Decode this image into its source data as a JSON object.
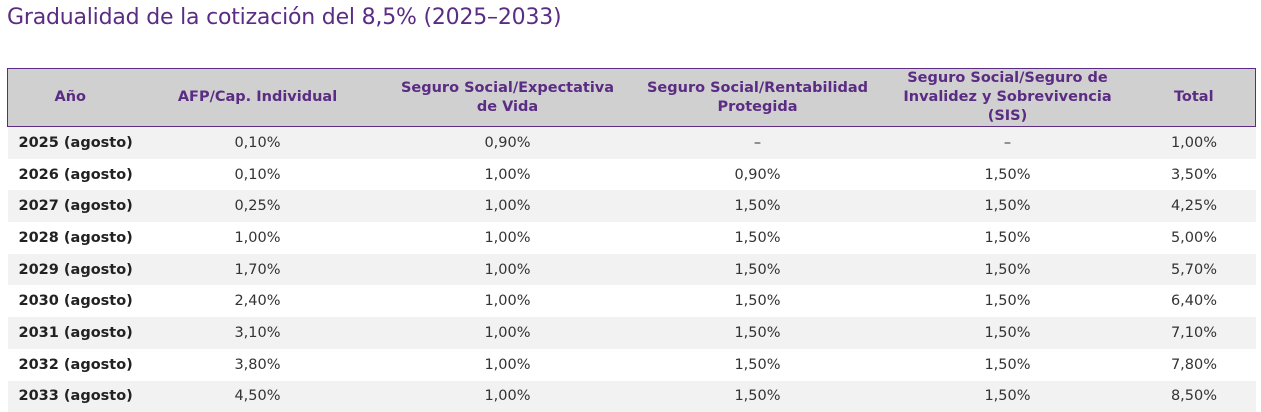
{
  "title": "Gradualidad de la cotización del 8,5% (2025–2033)",
  "table": {
    "headers": [
      "Año",
      "AFP/Cap. Individual",
      "Seguro Social/Expectativa de Vida",
      "Seguro Social/Rentabilidad Protegida",
      "Seguro Social/Seguro de Invalidez y Sobrevivencia (SIS)",
      "Total"
    ],
    "rows": [
      [
        "2025 (agosto)",
        "0,10%",
        "0,90%",
        "–",
        "–",
        "1,00%"
      ],
      [
        "2026 (agosto)",
        "0,10%",
        "1,00%",
        "0,90%",
        "1,50%",
        "3,50%"
      ],
      [
        "2027 (agosto)",
        "0,25%",
        "1,00%",
        "1,50%",
        "1,50%",
        "4,25%"
      ],
      [
        "2028 (agosto)",
        "1,00%",
        "1,00%",
        "1,50%",
        "1,50%",
        "5,00%"
      ],
      [
        "2029 (agosto)",
        "1,70%",
        "1,00%",
        "1,50%",
        "1,50%",
        "5,70%"
      ],
      [
        "2030 (agosto)",
        "2,40%",
        "1,00%",
        "1,50%",
        "1,50%",
        "6,40%"
      ],
      [
        "2031 (agosto)",
        "3,10%",
        "1,00%",
        "1,50%",
        "1,50%",
        "7,10%"
      ],
      [
        "2032 (agosto)",
        "3,80%",
        "1,00%",
        "1,50%",
        "1,50%",
        "7,80%"
      ],
      [
        "2033 (agosto)",
        "4,50%",
        "1,00%",
        "1,50%",
        "1,50%",
        "8,50%"
      ]
    ]
  },
  "colors": {
    "accent": "#5b2c83",
    "header_bg": "#d0d0d0",
    "row_alt_bg": "#f2f2f2"
  }
}
